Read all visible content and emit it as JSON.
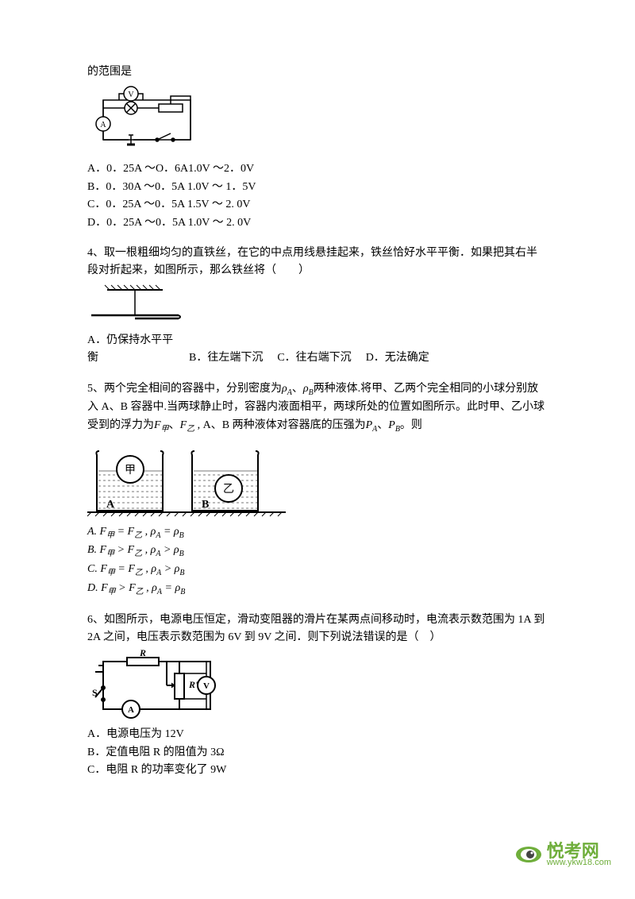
{
  "q3": {
    "trailing_line": "的范围是",
    "options": {
      "A": "A．0．25A ～O．6A1.0V ～2．0V",
      "B": "B．0．30A ～0．5A 1.0V ～ 1．5V",
      "C": "C．0．25A ～0．5A 1.5V ～ 2. 0V",
      "D": "D．0．25A ～0．5A 1.0V ～ 2. 0V"
    },
    "circuit": {
      "stroke": "#000000",
      "stroke_width": 1.5,
      "bg": "#ffffff"
    }
  },
  "q4": {
    "text": "4、取一根粗细均匀的直铁丝，在它的中点用线悬挂起来，铁丝恰好水平平衡．如果把其右半段对折起来，如图所示，那么铁丝将（　　）",
    "options": {
      "A": "A．仍保持水平平衡",
      "B": "B．往左端下沉",
      "C": "C．往右端下沉",
      "D": "D．无法确定"
    },
    "diagram": {
      "stroke": "#000000",
      "stroke_width": 2
    }
  },
  "q5": {
    "text_parts": {
      "p1a": "5、两个完全相间的容器中，分别密度为",
      "p1b": "、",
      "p1c": "两种液体.将甲、乙两个完全相同的小球分别放入 A、B 容器中.当两球静止时，容器内液面相平，两球所处的位置如图所示。此时甲、乙小球受到的浮力为",
      "p1d": "、",
      "p1e": " , A、B 两种液体对容器底的压强为",
      "p1f": "、",
      "p1g": "。则"
    },
    "symbols": {
      "rhoA": "ρ<sub class=\"sub\">A</sub>",
      "rhoB": "ρ<sub class=\"sub\">B</sub>",
      "Fjia": "F<sub class=\"sub\">甲</sub>",
      "Fyi": "F<sub class=\"sub\">乙</sub>",
      "PA": "P<sub class=\"sub\">A</sub>",
      "PB": "P<sub class=\"sub\">B</sub>"
    },
    "options": {
      "A": "A. F<sub class=\"sub\">甲</sub> = F<sub class=\"sub\">乙</sub>  , ρ<sub class=\"sub\">A</sub> = ρ<sub class=\"sub\">B</sub>",
      "B": "B. F<sub class=\"sub\">甲</sub> &gt; F<sub class=\"sub\">乙</sub> , ρ<sub class=\"sub\">A</sub> &gt; ρ<sub class=\"sub\">B</sub>",
      "C": "C. F<sub class=\"sub\">甲</sub> = F<sub class=\"sub\">乙</sub>  , ρ<sub class=\"sub\">A</sub> &gt; ρ<sub class=\"sub\">B</sub>",
      "D": "D. F<sub class=\"sub\">甲</sub> &gt; F<sub class=\"sub\">乙</sub>  , ρ<sub class=\"sub\">A</sub> = ρ<sub class=\"sub\">B</sub>"
    },
    "beakers": {
      "stroke": "#000000",
      "hatch_color": "#666666",
      "label_jia": "甲",
      "label_yi": "乙",
      "label_A": "A",
      "label_B": "B"
    }
  },
  "q6": {
    "text": "6、如图所示，电源电压恒定，滑动变阻器的滑片在某两点间移动时，电流表示数范围为 1A 到 2A 之间，电压表示数范围为 6V 到 9V 之间．则下列说法错误的是（　）",
    "options": {
      "A": "A．电源电压为 12V",
      "B": "B．定值电阻 R 的阻值为 3Ω",
      "C": "C．电阻 R 的功率变化了 9W"
    },
    "labels": {
      "R": "R",
      "Rp": "R'",
      "S": "S",
      "A": "A",
      "V": "V"
    },
    "circuit": {
      "stroke": "#000000",
      "stroke_width": 2
    }
  },
  "footer": {
    "brand_cn": "悦考网",
    "brand_url": "www.ykw18.com",
    "eye_outer": "#6fae3b",
    "eye_inner": "#ffffff",
    "eye_pupil": "#333333"
  }
}
